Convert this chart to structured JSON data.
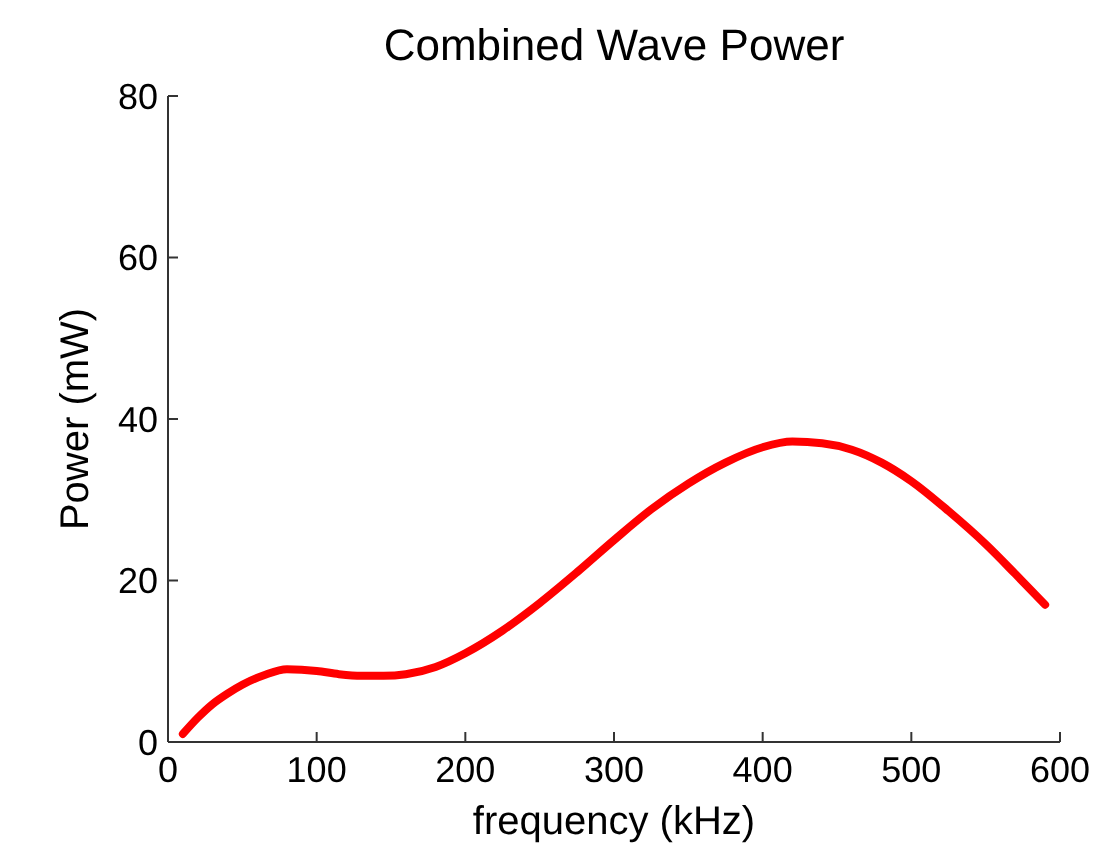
{
  "chart_data": {
    "type": "line",
    "title": "Combined Wave Power",
    "xlabel": "frequency (kHz)",
    "ylabel": "Power (mW)",
    "x": [
      10,
      20,
      30,
      40,
      50,
      65,
      80,
      100,
      115,
      130,
      145,
      160,
      180,
      200,
      225,
      250,
      275,
      300,
      325,
      350,
      375,
      400,
      420,
      440,
      460,
      480,
      500,
      525,
      550,
      570,
      590
    ],
    "series": [
      {
        "color": "#ff0000",
        "values": [
          1,
          3,
          4.7,
          6,
          7.1,
          8.3,
          9,
          8.8,
          8.4,
          8.2,
          8.2,
          8.4,
          9.3,
          11,
          13.8,
          17.2,
          21,
          25,
          28.8,
          32,
          34.6,
          36.5,
          37.2,
          37,
          36.2,
          34.6,
          32.3,
          28.6,
          24.5,
          20.8,
          17
        ]
      }
    ],
    "xlim": [
      0,
      600
    ],
    "xticks": [
      0,
      100,
      200,
      300,
      400,
      500,
      600
    ],
    "ylim": [
      0,
      80
    ],
    "yticks": [
      0,
      20,
      40,
      60,
      80
    ],
    "grid": false,
    "marker": "none",
    "line_style": "solid"
  }
}
